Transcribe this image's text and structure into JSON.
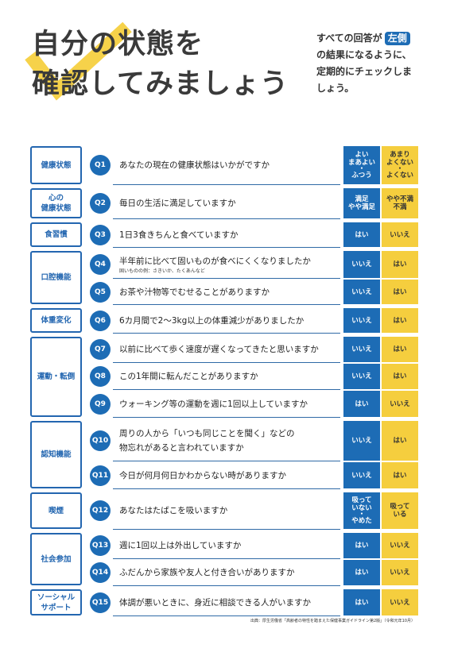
{
  "title": {
    "line1": "自分の状態を",
    "line2": "確認してみましょう"
  },
  "instruction": {
    "lead": "すべての回答が",
    "highlight": "左側",
    "lines": [
      "の結果になるように、",
      "定期的にチェックしま",
      "しょう。"
    ]
  },
  "colors": {
    "blue": "#1d6cb5",
    "category_blue": "#2366b0",
    "yellow": "#f5ce3e",
    "check_yellow": "#f6d24a",
    "rule": "#2f6aa6",
    "text": "#2b2b2b"
  },
  "icons": {
    "title_decoration": "checkmark-icon"
  },
  "categories": [
    {
      "lines": [
        "健康状態"
      ],
      "questions": [
        "Q1"
      ]
    },
    {
      "lines": [
        "心の",
        "健康状態"
      ],
      "questions": [
        "Q2"
      ]
    },
    {
      "lines": [
        "食習慣"
      ],
      "questions": [
        "Q3"
      ]
    },
    {
      "lines": [
        "口腔機能"
      ],
      "questions": [
        "Q4",
        "Q5"
      ]
    },
    {
      "lines": [
        "体重変化"
      ],
      "questions": [
        "Q6"
      ]
    },
    {
      "lines": [
        "運動・転倒"
      ],
      "questions": [
        "Q7",
        "Q8",
        "Q9"
      ]
    },
    {
      "lines": [
        "認知機能"
      ],
      "questions": [
        "Q10",
        "Q11"
      ]
    },
    {
      "lines": [
        "喫煙"
      ],
      "questions": [
        "Q12"
      ]
    },
    {
      "lines": [
        "社会参加"
      ],
      "questions": [
        "Q13",
        "Q14"
      ]
    },
    {
      "lines": [
        "ソーシャル",
        "サポート"
      ],
      "questions": [
        "Q15"
      ]
    }
  ],
  "questions": [
    {
      "number": "Q1",
      "lines": [
        "あなたの現在の健康状態はいかがですか"
      ],
      "note": "",
      "left_answer": [
        "よい",
        "まあよい",
        "・",
        "ふつう"
      ],
      "right_answer": [
        "あまり",
        "よくない",
        "・",
        "よくない"
      ]
    },
    {
      "number": "Q2",
      "lines": [
        "毎日の生活に満足していますか"
      ],
      "note": "",
      "left_answer": [
        "満足",
        "やや満足"
      ],
      "right_answer": [
        "やや不満",
        "不満"
      ]
    },
    {
      "number": "Q3",
      "lines": [
        "1日3食きちんと食べていますか"
      ],
      "note": "",
      "left_answer": [
        "はい"
      ],
      "right_answer": [
        "いいえ"
      ]
    },
    {
      "number": "Q4",
      "lines": [
        "半年前に比べて固いものが食べにくくなりましたか"
      ],
      "note": "固いものの例：さきいか、たくあんなど",
      "left_answer": [
        "いいえ"
      ],
      "right_answer": [
        "はい"
      ]
    },
    {
      "number": "Q5",
      "lines": [
        "お茶や汁物等でむせることがありますか"
      ],
      "note": "",
      "left_answer": [
        "いいえ"
      ],
      "right_answer": [
        "はい"
      ]
    },
    {
      "number": "Q6",
      "lines": [
        "6カ月間で2～3kg以上の体重減少がありましたか"
      ],
      "note": "",
      "left_answer": [
        "いいえ"
      ],
      "right_answer": [
        "はい"
      ]
    },
    {
      "number": "Q7",
      "lines": [
        "以前に比べて歩く速度が遅くなってきたと思いますか"
      ],
      "note": "",
      "left_answer": [
        "いいえ"
      ],
      "right_answer": [
        "はい"
      ]
    },
    {
      "number": "Q8",
      "lines": [
        "この1年間に転んだことがありますか"
      ],
      "note": "",
      "left_answer": [
        "いいえ"
      ],
      "right_answer": [
        "はい"
      ]
    },
    {
      "number": "Q9",
      "lines": [
        "ウォーキング等の運動を週に1回以上していますか"
      ],
      "note": "",
      "left_answer": [
        "はい"
      ],
      "right_answer": [
        "いいえ"
      ]
    },
    {
      "number": "Q10",
      "lines": [
        "周りの人から「いつも同じことを聞く」などの",
        "物忘れがあると言われていますか"
      ],
      "note": "",
      "left_answer": [
        "いいえ"
      ],
      "right_answer": [
        "はい"
      ]
    },
    {
      "number": "Q11",
      "lines": [
        "今日が何月何日かわからない時がありますか"
      ],
      "note": "",
      "left_answer": [
        "いいえ"
      ],
      "right_answer": [
        "はい"
      ]
    },
    {
      "number": "Q12",
      "lines": [
        "あなたはたばこを吸いますか"
      ],
      "note": "",
      "left_answer": [
        "吸って",
        "いない",
        "・",
        "やめた"
      ],
      "right_answer": [
        "吸って",
        "いる"
      ]
    },
    {
      "number": "Q13",
      "lines": [
        "週に1回以上は外出していますか"
      ],
      "note": "",
      "left_answer": [
        "はい"
      ],
      "right_answer": [
        "いいえ"
      ]
    },
    {
      "number": "Q14",
      "lines": [
        "ふだんから家族や友人と付き合いがありますか"
      ],
      "note": "",
      "left_answer": [
        "はい"
      ],
      "right_answer": [
        "いいえ"
      ]
    },
    {
      "number": "Q15",
      "lines": [
        "体調が悪いときに、身近に相談できる人がいますか"
      ],
      "note": "",
      "left_answer": [
        "はい"
      ],
      "right_answer": [
        "いいえ"
      ]
    }
  ],
  "source": "出典：厚生労働省「高齢者の特性を踏まえた保健事業ガイドライン第2版」（令和元年10月）"
}
